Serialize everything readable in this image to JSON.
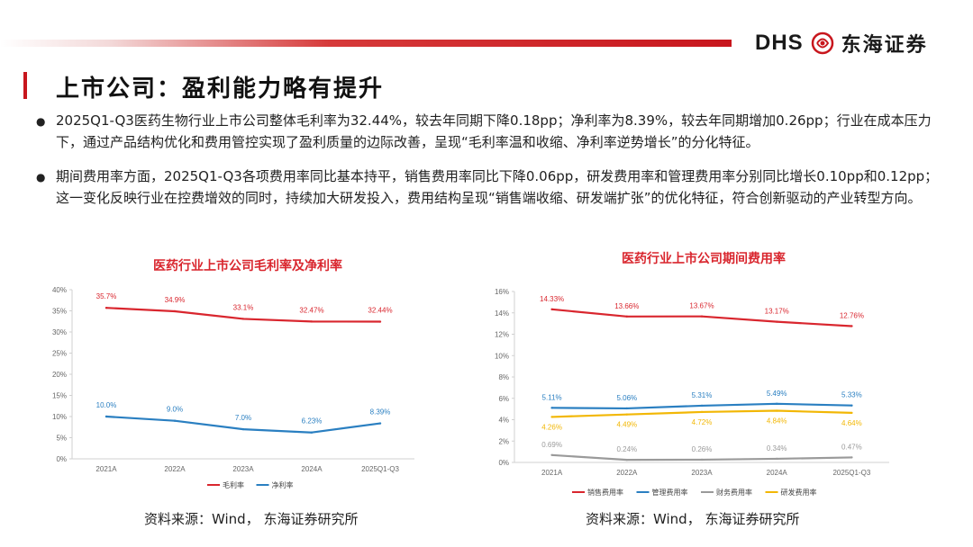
{
  "header": {
    "logo_mark": "DHS",
    "logo_name": "东海证券"
  },
  "page": {
    "title": "上市公司：盈利能力略有提升"
  },
  "bullets": [
    "2025Q1-Q3医药生物行业上市公司整体毛利率为32.44%，较去年同期下降0.18pp；净利率为8.39%，较去年同期增加0.26pp；行业在成本压力下，通过产品结构优化和费用管控实现了盈利质量的边际改善，呈现“毛利率温和收缩、净利率逆势增长”的分化特征。",
    "期间费用率方面，2025Q1-Q3各项费用率同比基本持平，销售费用率同比下降0.06pp，研发费用率和管理费用率分别同比增长0.10pp和0.12pp；这一变化反映行业在控费增效的同时，持续加大研发投入，费用结构呈现“销售端收缩、研发端扩张”的优化特征，符合创新驱动的产业转型方向。"
  ],
  "chart_data": [
    {
      "type": "line",
      "title": "医药行业上市公司毛利率及净利率",
      "categories": [
        "2021A",
        "2022A",
        "2023A",
        "2024A",
        "2025Q1-Q3"
      ],
      "ylim": [
        0,
        40
      ],
      "yticks": [
        "0%",
        "5%",
        "10%",
        "15%",
        "20%",
        "25%",
        "30%",
        "35%",
        "40%"
      ],
      "series": [
        {
          "name": "毛利率",
          "color": "#d9262e",
          "values": [
            35.7,
            34.9,
            33.1,
            32.47,
            32.44
          ],
          "labels": [
            "35.7%",
            "34.9%",
            "33.1%",
            "32.47%",
            "32.44%"
          ]
        },
        {
          "name": "净利率",
          "color": "#2a7fc1",
          "values": [
            10.0,
            9.0,
            7.0,
            6.23,
            8.39
          ],
          "labels": [
            "10.0%",
            "9.0%",
            "7.0%",
            "6.23%",
            "8.39%"
          ]
        }
      ],
      "source": "资料来源：Wind， 东海证券研究所"
    },
    {
      "type": "line",
      "title": "医药行业上市公司期间费用率",
      "categories": [
        "2021A",
        "2022A",
        "2023A",
        "2024A",
        "2025Q1-Q3"
      ],
      "ylim": [
        0,
        16
      ],
      "yticks": [
        "0%",
        "2%",
        "4%",
        "6%",
        "8%",
        "10%",
        "12%",
        "14%",
        "16%"
      ],
      "series": [
        {
          "name": "销售费用率",
          "color": "#d9262e",
          "values": [
            14.33,
            13.66,
            13.67,
            13.17,
            12.76
          ],
          "labels": [
            "14.33%",
            "13.66%",
            "13.67%",
            "13.17%",
            "12.76%"
          ]
        },
        {
          "name": "管理费用率",
          "color": "#2a7fc1",
          "values": [
            5.11,
            5.06,
            5.31,
            5.49,
            5.33
          ],
          "labels": [
            "5.11%",
            "5.06%",
            "5.31%",
            "5.49%",
            "5.33%"
          ]
        },
        {
          "name": "财务费用率",
          "color": "#9a9a9a",
          "values": [
            0.69,
            0.24,
            0.26,
            0.34,
            0.47
          ],
          "labels": [
            "0.69%",
            "0.24%",
            "0.26%",
            "0.34%",
            "0.47%"
          ]
        },
        {
          "name": "研发费用率",
          "color": "#f2b705",
          "values": [
            4.26,
            4.49,
            4.72,
            4.84,
            4.64
          ],
          "labels": [
            "4.26%",
            "4.49%",
            "4.72%",
            "4.84%",
            "4.64%"
          ]
        }
      ],
      "source": "资料来源：Wind， 东海证券研究所"
    }
  ]
}
